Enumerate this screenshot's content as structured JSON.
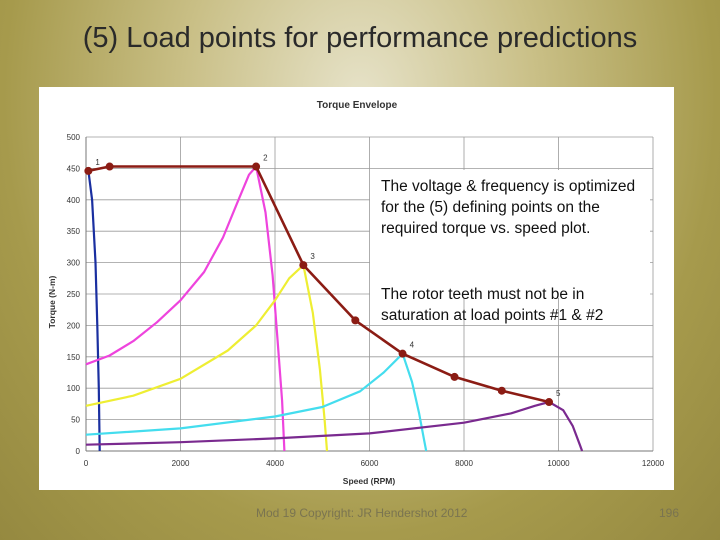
{
  "slide": {
    "title": "(5) Load points for performance predictions",
    "note_1": "The voltage & frequency is optimized for the (5) defining points on the required torque vs. speed plot.",
    "note_2": "The rotor teeth must not be in saturation at load points #1 & #2",
    "footer_left": "Mod 19 Copyright: JR Hendershot 2012",
    "page_number": "196"
  },
  "chart_data": {
    "type": "line",
    "title": "Torque Envelope",
    "xlabel": "Speed (RPM)",
    "ylabel": "Torque (N-m)",
    "xlim": [
      0,
      12000
    ],
    "ylim": [
      0,
      500
    ],
    "x_ticks": [
      0,
      2000,
      4000,
      6000,
      8000,
      10000,
      12000
    ],
    "y_ticks": [
      0,
      50,
      100,
      150,
      200,
      250,
      300,
      350,
      400,
      450,
      500
    ],
    "grid": true,
    "colors": {
      "envelope": "#8b1c14",
      "curve_1": "#1a2fa0",
      "curve_2": "#ee44dd",
      "curve_3": "#eeee33",
      "curve_4": "#44ddee",
      "curve_5": "#7a2a8f"
    },
    "envelope": [
      [
        50,
        446
      ],
      [
        500,
        453
      ],
      [
        3600,
        453
      ],
      [
        4600,
        296
      ],
      [
        5700,
        208
      ],
      [
        6700,
        155
      ],
      [
        7800,
        118
      ],
      [
        8800,
        96
      ],
      [
        9800,
        78
      ]
    ],
    "load_points": [
      {
        "label": "1",
        "x": 50,
        "y": 446
      },
      {
        "label": "2",
        "x": 3600,
        "y": 453
      },
      {
        "label": "3",
        "x": 4600,
        "y": 296
      },
      {
        "label": "4",
        "x": 6700,
        "y": 155
      },
      {
        "label": "5",
        "x": 9800,
        "y": 78
      }
    ],
    "curves": [
      {
        "color_key": "curve_1",
        "points": [
          [
            0,
            445
          ],
          [
            50,
            446
          ],
          [
            130,
            400
          ],
          [
            200,
            300
          ],
          [
            240,
            200
          ],
          [
            270,
            100
          ],
          [
            290,
            0
          ]
        ]
      },
      {
        "color_key": "curve_2",
        "points": [
          [
            0,
            138
          ],
          [
            500,
            152
          ],
          [
            1000,
            175
          ],
          [
            1500,
            205
          ],
          [
            2000,
            240
          ],
          [
            2500,
            285
          ],
          [
            2900,
            340
          ],
          [
            3200,
            395
          ],
          [
            3450,
            440
          ],
          [
            3600,
            453
          ],
          [
            3800,
            380
          ],
          [
            3950,
            280
          ],
          [
            4050,
            180
          ],
          [
            4150,
            80
          ],
          [
            4200,
            0
          ]
        ]
      },
      {
        "color_key": "curve_3",
        "points": [
          [
            0,
            72
          ],
          [
            1000,
            88
          ],
          [
            2000,
            115
          ],
          [
            3000,
            160
          ],
          [
            3600,
            200
          ],
          [
            4000,
            240
          ],
          [
            4300,
            275
          ],
          [
            4600,
            296
          ],
          [
            4800,
            220
          ],
          [
            4950,
            130
          ],
          [
            5050,
            50
          ],
          [
            5100,
            0
          ]
        ]
      },
      {
        "color_key": "curve_4",
        "points": [
          [
            0,
            26
          ],
          [
            2000,
            36
          ],
          [
            4000,
            55
          ],
          [
            5000,
            70
          ],
          [
            5800,
            95
          ],
          [
            6300,
            125
          ],
          [
            6700,
            155
          ],
          [
            6900,
            110
          ],
          [
            7050,
            60
          ],
          [
            7150,
            20
          ],
          [
            7200,
            0
          ]
        ]
      },
      {
        "color_key": "curve_5",
        "points": [
          [
            0,
            10
          ],
          [
            2000,
            14
          ],
          [
            4000,
            20
          ],
          [
            6000,
            28
          ],
          [
            8000,
            45
          ],
          [
            9000,
            60
          ],
          [
            9500,
            72
          ],
          [
            9800,
            78
          ],
          [
            10100,
            65
          ],
          [
            10300,
            40
          ],
          [
            10450,
            10
          ],
          [
            10500,
            0
          ]
        ]
      }
    ]
  }
}
